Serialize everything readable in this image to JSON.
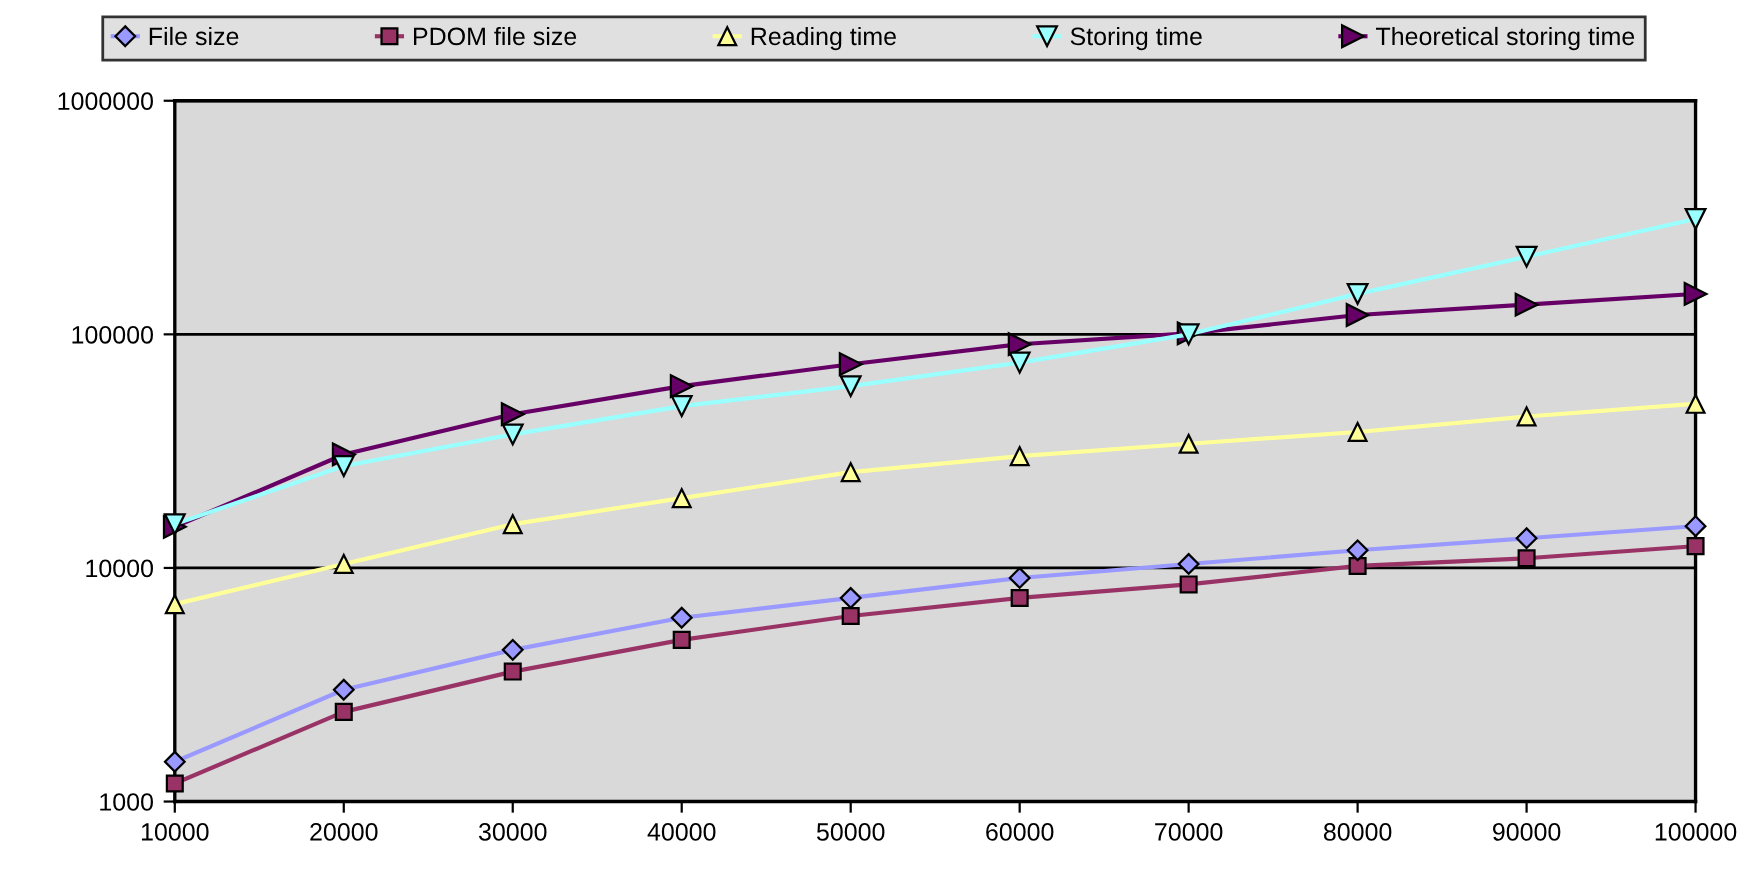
{
  "chart_data": {
    "type": "line",
    "log": "y",
    "grid": "y",
    "legend": "top",
    "x": [
      10000,
      20000,
      30000,
      40000,
      50000,
      60000,
      70000,
      80000,
      90000,
      100000
    ],
    "xlim": [
      10000,
      100000
    ],
    "xticks": [
      10000,
      20000,
      30000,
      40000,
      50000,
      60000,
      70000,
      80000,
      90000,
      100000
    ],
    "ylim": [
      1000,
      1000000
    ],
    "yticks": [
      1000,
      10000,
      100000,
      1000000
    ],
    "series": [
      {
        "name": "File size",
        "color": "#9999ff",
        "marker": "diamond",
        "values": [
          1480,
          3010,
          4460,
          6120,
          7440,
          9060,
          10400,
          11900,
          13400,
          15100
        ]
      },
      {
        "name": "PDOM file size",
        "color": "#993366",
        "marker": "square",
        "values": [
          1195,
          2420,
          3600,
          4920,
          6230,
          7440,
          8500,
          10200,
          11000,
          12400
        ]
      },
      {
        "name": "Reading time",
        "color": "#ffff99",
        "marker": "triangle",
        "values": [
          7000,
          10400,
          15400,
          19900,
          25700,
          30100,
          34000,
          38200,
          44500,
          50400
        ]
      },
      {
        "name": "Storing time",
        "color": "#99ffff",
        "marker": "triangle_down",
        "values": [
          15400,
          27300,
          37300,
          49300,
          60000,
          75700,
          100000,
          149000,
          215000,
          312000
        ]
      },
      {
        "name": "Theoretical storing time",
        "color": "#660066",
        "marker": "triangle_right",
        "values": [
          15000,
          30600,
          45500,
          60000,
          74500,
          90700,
          101000,
          121000,
          134000,
          149000
        ]
      }
    ]
  }
}
